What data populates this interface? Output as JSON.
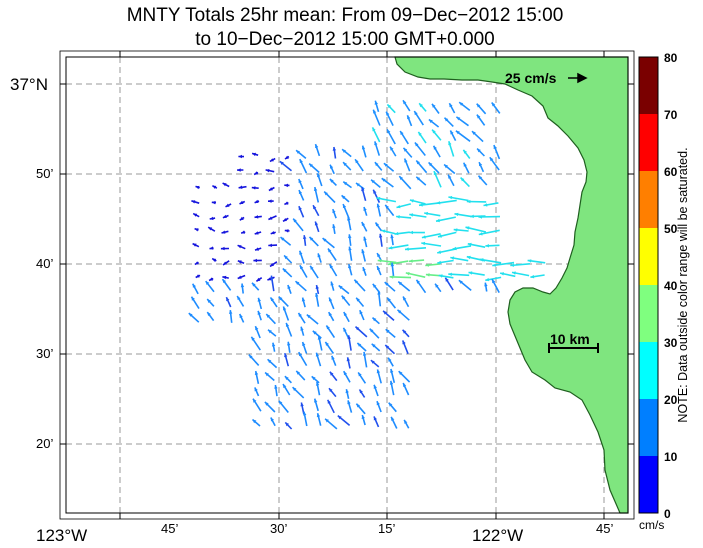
{
  "title": {
    "line1": "MNTY Totals 25hr mean: From 09−Dec−2012 15:00",
    "line2": "to 10−Dec−2012 15:00 GMT+0.000"
  },
  "axes": {
    "lon_labels": [
      "123°W",
      "45’",
      "30’",
      "15’",
      "122°W",
      "45’"
    ],
    "lat_labels": [
      "37°N",
      "50’",
      "40’",
      "30’",
      "20’"
    ]
  },
  "colorbar": {
    "unit": "cm/s",
    "labels": [
      "80",
      "70",
      "60",
      "50",
      "40",
      "30",
      "20",
      "10",
      "0"
    ],
    "colors": [
      "#7a0000",
      "#ff0000",
      "#ff7f00",
      "#ffff00",
      "#7fff7f",
      "#00ffff",
      "#007fff",
      "#0000ff"
    ],
    "note": "NOTE: Data outside color range will be saturated."
  },
  "legend": {
    "reference_vector": "25 cm/s",
    "scale_bar": "10 km"
  },
  "colors": {
    "land": "#7fe57f",
    "coast": "#1a5a1a",
    "grid": "#999999"
  }
}
